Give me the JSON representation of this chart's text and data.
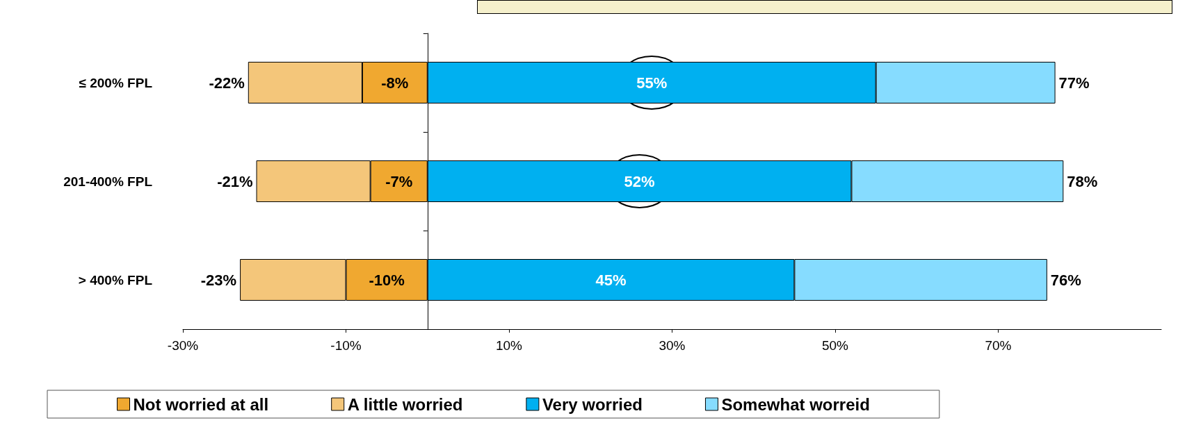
{
  "chart_data": {
    "type": "bar",
    "orientation": "horizontal",
    "stacked": true,
    "categories": [
      "≤ 200% FPL",
      "201-400% FPL",
      "> 400% FPL"
    ],
    "series": [
      {
        "name": "Not worried at all",
        "color": "#f0a830",
        "values": [
          -8,
          -7,
          -10
        ],
        "value_labels": [
          "-8%",
          "-7%",
          "-10%"
        ]
      },
      {
        "name": "A little worried",
        "color": "#f4c67a",
        "values": [
          -14,
          -14,
          -13
        ],
        "value_labels": [
          null,
          null,
          null
        ]
      },
      {
        "name": "Very worried",
        "color": "#00b0f0",
        "values": [
          55,
          52,
          45
        ],
        "value_labels": [
          "55%",
          "52%",
          "45%"
        ]
      },
      {
        "name": "Somewhat worreid",
        "color": "#86dcff",
        "values": [
          22,
          26,
          31
        ],
        "value_labels": [
          null,
          null,
          null
        ]
      }
    ],
    "totals": [
      [
        "-22%",
        "-21%",
        "-23%"
      ],
      [
        "77%",
        "78%",
        "76%"
      ]
    ],
    "xlim": [
      -30,
      90
    ],
    "xticks": [
      {
        "value": -30,
        "label": "-30%"
      },
      {
        "value": -10,
        "label": "-10%"
      },
      {
        "value": 10,
        "label": "10%"
      },
      {
        "value": 30,
        "label": "30%"
      },
      {
        "value": 50,
        "label": "50%"
      },
      {
        "value": 70,
        "label": "70%"
      }
    ],
    "grid": false,
    "legend": "bottom"
  }
}
